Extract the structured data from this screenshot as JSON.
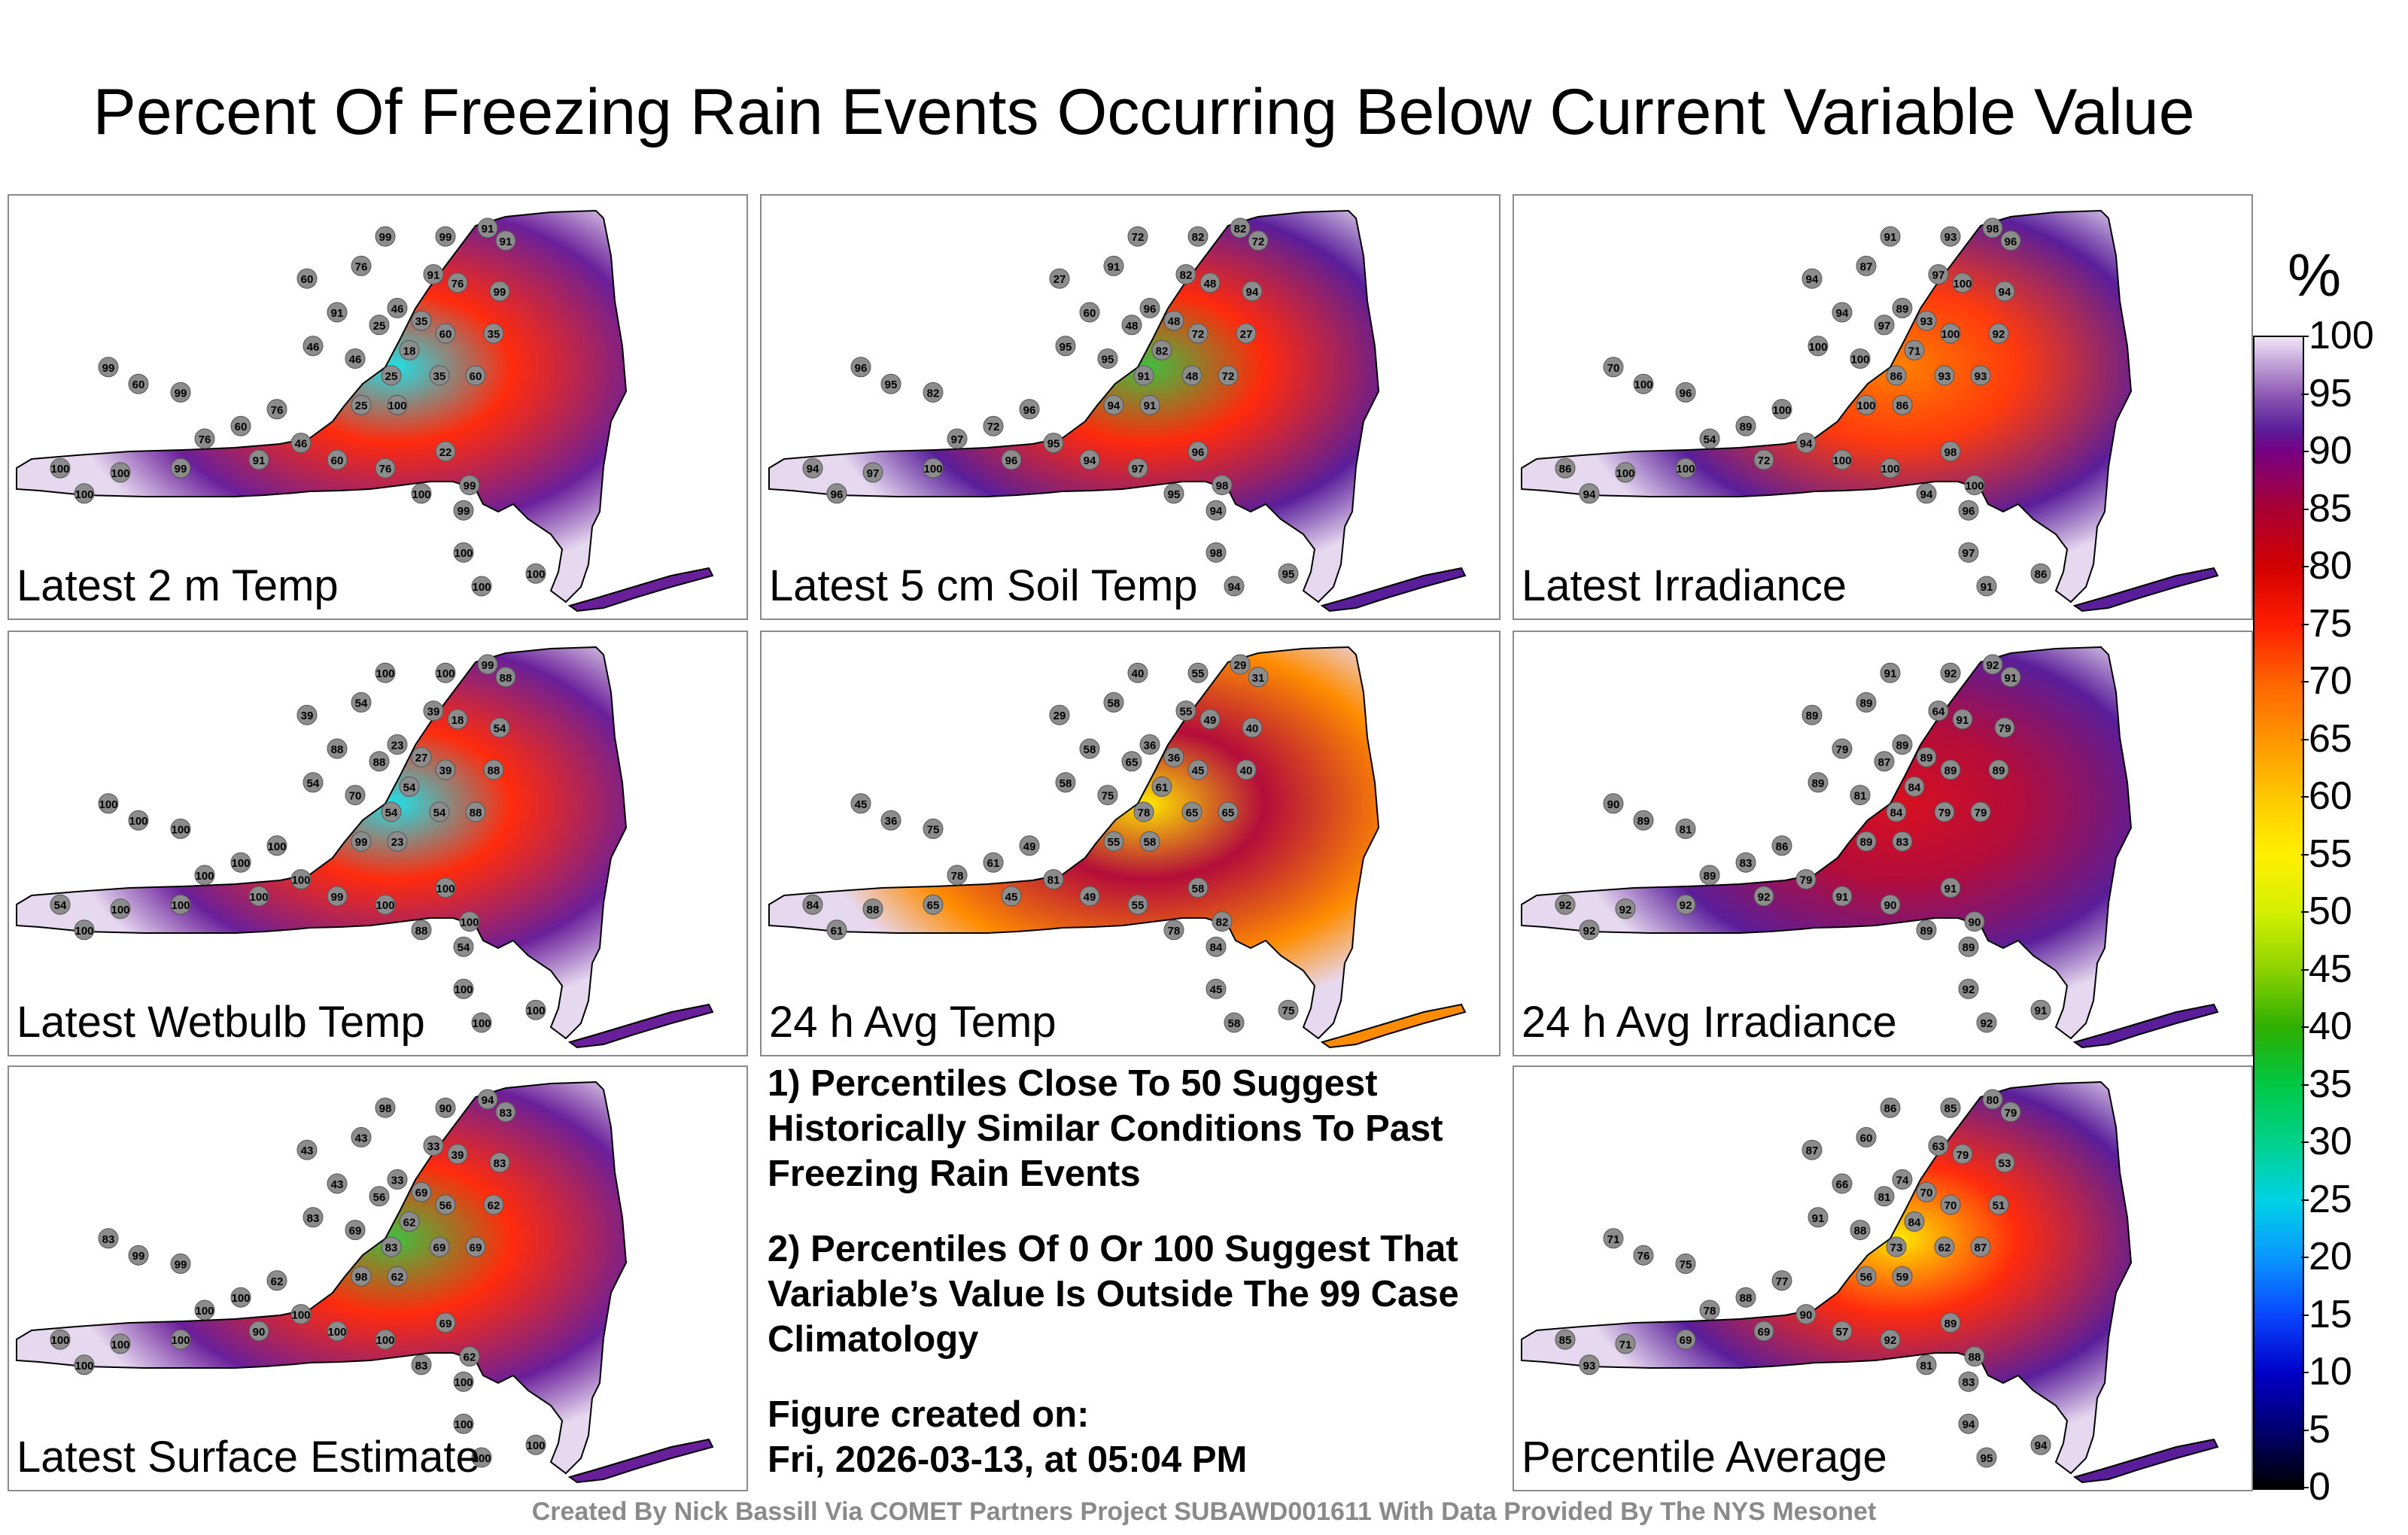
{
  "title": "Percent Of Freezing Rain Events Occurring Below Current Variable Value",
  "panels": [
    {
      "label": "Latest 2 m Temp",
      "fill": "#6a1f9a",
      "hot": "#ff2000",
      "core": "#20e0e8",
      "stations": [
        "99",
        "99",
        "91",
        "91",
        "60",
        "76",
        "91",
        "76",
        "46",
        "35",
        "99",
        "91",
        "25",
        "18",
        "60",
        "35",
        "46",
        "46",
        "25",
        "35",
        "60",
        "100",
        "99",
        "60",
        "25",
        "76",
        "60",
        "46",
        "99",
        "76",
        "91",
        "60",
        "76",
        "22",
        "99",
        "100",
        "99",
        "100",
        "100",
        "99",
        "100",
        "100",
        "100",
        "100"
      ]
    },
    {
      "label": "Latest 5 cm Soil Temp",
      "fill": "#5a1e9a",
      "hot": "#ff1e00",
      "core": "#40c040",
      "stations": [
        "72",
        "82",
        "82",
        "72",
        "27",
        "91",
        "82",
        "48",
        "96",
        "48",
        "94",
        "60",
        "48",
        "82",
        "72",
        "27",
        "95",
        "95",
        "91",
        "48",
        "72",
        "91",
        "96",
        "95",
        "94",
        "96",
        "72",
        "95",
        "82",
        "97",
        "96",
        "94",
        "97",
        "96",
        "98",
        "95",
        "94",
        "94",
        "97",
        "100",
        "96",
        "98",
        "94",
        "95"
      ]
    },
    {
      "label": "Latest Irradiance",
      "fill": "#5a1e9a",
      "hot": "#ff3000",
      "core": "#ff8000",
      "stations": [
        "91",
        "93",
        "98",
        "96",
        "94",
        "87",
        "97",
        "100",
        "89",
        "93",
        "94",
        "94",
        "97",
        "71",
        "100",
        "92",
        "100",
        "100",
        "86",
        "93",
        "93",
        "86",
        "70",
        "100",
        "100",
        "100",
        "89",
        "94",
        "96",
        "54",
        "72",
        "100",
        "100",
        "98",
        "100",
        "94",
        "96",
        "86",
        "100",
        "100",
        "94",
        "97",
        "91",
        "86"
      ]
    },
    {
      "label": "Latest Wetbulb Temp",
      "fill": "#6a1f9a",
      "hot": "#ff2000",
      "core": "#20e0e8",
      "stations": [
        "100",
        "100",
        "99",
        "88",
        "39",
        "54",
        "39",
        "18",
        "23",
        "27",
        "54",
        "88",
        "88",
        "54",
        "39",
        "88",
        "54",
        "70",
        "54",
        "54",
        "88",
        "23",
        "100",
        "100",
        "99",
        "100",
        "100",
        "100",
        "100",
        "100",
        "100",
        "99",
        "100",
        "100",
        "100",
        "88",
        "54",
        "54",
        "100",
        "100",
        "100",
        "100",
        "100",
        "100"
      ]
    },
    {
      "label": "24 h Avg Temp",
      "fill": "#ff8c00",
      "hot": "#b00030",
      "core": "#ffe800",
      "stations": [
        "40",
        "55",
        "29",
        "31",
        "29",
        "58",
        "55",
        "49",
        "36",
        "36",
        "40",
        "58",
        "65",
        "61",
        "45",
        "40",
        "58",
        "75",
        "78",
        "65",
        "65",
        "58",
        "45",
        "36",
        "55",
        "49",
        "61",
        "81",
        "75",
        "78",
        "45",
        "49",
        "55",
        "58",
        "82",
        "78",
        "84",
        "84",
        "88",
        "65",
        "61",
        "45",
        "58",
        "75"
      ]
    },
    {
      "label": "24 h Avg Irradiance",
      "fill": "#5a1e9a",
      "hot": "#b00030",
      "core": "#d81020",
      "stations": [
        "91",
        "92",
        "92",
        "91",
        "89",
        "89",
        "64",
        "91",
        "89",
        "89",
        "79",
        "79",
        "87",
        "84",
        "89",
        "89",
        "89",
        "81",
        "84",
        "79",
        "79",
        "83",
        "90",
        "89",
        "89",
        "86",
        "83",
        "79",
        "81",
        "89",
        "92",
        "91",
        "90",
        "91",
        "90",
        "89",
        "89",
        "92",
        "92",
        "92",
        "92",
        "92",
        "92",
        "91"
      ]
    },
    {
      "label": "Latest Surface Estimate",
      "fill": "#6a1f9a",
      "hot": "#ff2000",
      "core": "#40c040",
      "stations": [
        "98",
        "90",
        "94",
        "83",
        "43",
        "43",
        "33",
        "39",
        "33",
        "69",
        "83",
        "43",
        "56",
        "62",
        "56",
        "62",
        "83",
        "69",
        "83",
        "69",
        "69",
        "62",
        "83",
        "99",
        "98",
        "62",
        "100",
        "100",
        "99",
        "100",
        "90",
        "100",
        "100",
        "69",
        "62",
        "83",
        "100",
        "100",
        "100",
        "100",
        "100",
        "100",
        "100",
        "100"
      ]
    },
    {
      "label": "Percentile Average",
      "fill": "#5a1e9a",
      "hot": "#ff2000",
      "core": "#ffe800",
      "stations": [
        "86",
        "85",
        "80",
        "79",
        "87",
        "60",
        "63",
        "79",
        "74",
        "70",
        "53",
        "66",
        "81",
        "84",
        "70",
        "51",
        "91",
        "88",
        "73",
        "62",
        "87",
        "59",
        "71",
        "76",
        "56",
        "77",
        "88",
        "90",
        "75",
        "78",
        "69",
        "57",
        "92",
        "89",
        "88",
        "81",
        "83",
        "85",
        "71",
        "69",
        "93",
        "94",
        "95",
        "94"
      ]
    }
  ],
  "notes": [
    "1) Percentiles Close To 50 Suggest Historically Similar Conditions To Past Freezing Rain Events",
    "2) Percentiles Of 0 Or 100 Suggest That Variable’s Value Is Outside The 99 Case Climatology"
  ],
  "created_label": "Figure created on:",
  "created_date": "Fri, 2026-03-13, at 05:04 PM",
  "colorbar": {
    "unit": "%",
    "ticks": [
      "100",
      "95",
      "90",
      "85",
      "80",
      "75",
      "70",
      "65",
      "60",
      "55",
      "50",
      "45",
      "40",
      "35",
      "30",
      "25",
      "20",
      "15",
      "10",
      "5",
      "0"
    ]
  },
  "footer": "Created By Nick Bassill Via COMET Partners Project SUBAWD001611 With Data Provided By The NYS Mesonet"
}
